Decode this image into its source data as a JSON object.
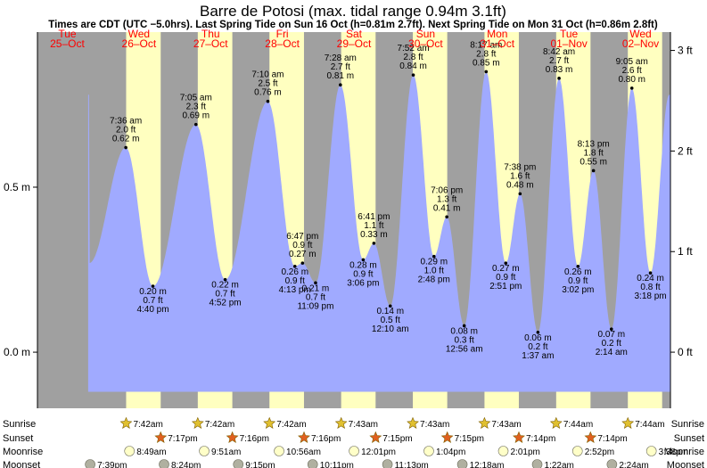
{
  "page": {
    "title": "Barre de Potosi (max. tidal range 0.94m 3.1ft)",
    "subtitle": "Times are CDT (UTC −5.0hrs). Last Spring Tide on Sun 16 Oct (h=0.81m 2.7ft). Next Spring Tide on Mon 31 Oct (h=0.86m 2.8ft)"
  },
  "colors": {
    "night": "#a0a0a0",
    "day": "#ffffc0",
    "tide": "#a0aaff",
    "label": "#000000",
    "day_label": "#ff0000",
    "sun_star": "#e0c030",
    "sunset_star": "#e06020",
    "moon_disc": "#ffffc8",
    "moonset_disc": "#b0b0a0"
  },
  "chart_data": {
    "type": "area",
    "x_unit": "hours since Tue 25-Oct 00:00 CDT",
    "y_unit": "m",
    "xlim": [
      2,
      214
    ],
    "ylim": [
      -0.17,
      0.97
    ],
    "left_axis": {
      "ticks": [
        0.0,
        0.5
      ],
      "labels": [
        "0.0 m",
        "0.5 m"
      ]
    },
    "right_axis": {
      "ticks": [
        0.0,
        0.3048,
        0.6096,
        0.9144
      ],
      "labels": [
        "0 ft",
        "1 ft",
        "2 ft",
        "3 ft"
      ]
    },
    "days": [
      {
        "dow": "Tue",
        "date": "25–Oct"
      },
      {
        "dow": "Wed",
        "date": "26–Oct"
      },
      {
        "dow": "Thu",
        "date": "27–Oct"
      },
      {
        "dow": "Fri",
        "date": "28–Oct"
      },
      {
        "dow": "Sat",
        "date": "29–Oct"
      },
      {
        "dow": "Sun",
        "date": "30–Oct"
      },
      {
        "dow": "Mon",
        "date": "31–Oct"
      },
      {
        "dow": "Tue",
        "date": "01–Nov"
      },
      {
        "dow": "Wed",
        "date": "02–Nov"
      }
    ],
    "extremes": [
      {
        "t": 31.6,
        "m": 0.62,
        "time": "7:36 am",
        "height_m": "0.62 m",
        "height_ft": "2.0 ft",
        "type": "high"
      },
      {
        "t": 40.67,
        "m": 0.2,
        "time": "4:40 pm",
        "height_m": "0.20 m",
        "height_ft": "0.7 ft",
        "type": "low"
      },
      {
        "t": 55.08,
        "m": 0.69,
        "time": "7:05 am",
        "height_m": "0.69 m",
        "height_ft": "2.3 ft",
        "type": "high"
      },
      {
        "t": 64.87,
        "m": 0.22,
        "time": "4:52 pm",
        "height_m": "0.22 m",
        "height_ft": "0.7 ft",
        "type": "low"
      },
      {
        "t": 79.17,
        "m": 0.76,
        "time": "7:10 am",
        "height_m": "0.76 m",
        "height_ft": "2.5 ft",
        "type": "high"
      },
      {
        "t": 88.22,
        "m": 0.26,
        "time": "4:13 pm",
        "height_m": "0.26 m",
        "height_ft": "0.9 ft",
        "type": "low"
      },
      {
        "t": 90.78,
        "m": 0.27,
        "time": "6:47 pm",
        "height_m": "0.27 m",
        "height_ft": "0.9 ft",
        "type": "high"
      },
      {
        "t": 95.15,
        "m": 0.21,
        "time": "11:09 pm",
        "height_m": "0.21 m",
        "height_ft": "0.7 ft",
        "type": "low"
      },
      {
        "t": 103.47,
        "m": 0.81,
        "time": "7:28 am",
        "height_m": "0.81 m",
        "height_ft": "2.7 ft",
        "type": "high"
      },
      {
        "t": 111.1,
        "m": 0.28,
        "time": "3:06 pm",
        "height_m": "0.28 m",
        "height_ft": "0.9 ft",
        "type": "low"
      },
      {
        "t": 114.68,
        "m": 0.33,
        "time": "6:41 pm",
        "height_m": "0.33 m",
        "height_ft": "1.1 ft",
        "type": "high"
      },
      {
        "t": 120.17,
        "m": 0.14,
        "time": "12:10 am",
        "height_m": "0.14 m",
        "height_ft": "0.5 ft",
        "type": "low"
      },
      {
        "t": 127.87,
        "m": 0.84,
        "time": "7:52 am",
        "height_m": "0.84 m",
        "height_ft": "2.8 ft",
        "type": "high"
      },
      {
        "t": 134.8,
        "m": 0.29,
        "time": "2:48 pm",
        "height_m": "0.29 m",
        "height_ft": "1.0 ft",
        "type": "low"
      },
      {
        "t": 139.1,
        "m": 0.41,
        "time": "7:06 pm",
        "height_m": "0.41 m",
        "height_ft": "1.3 ft",
        "type": "high"
      },
      {
        "t": 144.93,
        "m": 0.08,
        "time": "12:56 am",
        "height_m": "0.08 m",
        "height_ft": "0.3 ft",
        "type": "low"
      },
      {
        "t": 152.28,
        "m": 0.85,
        "time": "8:17 am",
        "height_m": "0.85 m",
        "height_ft": "2.8 ft",
        "type": "high"
      },
      {
        "t": 158.85,
        "m": 0.27,
        "time": "2:51 pm",
        "height_m": "0.27 m",
        "height_ft": "0.9 ft",
        "type": "low"
      },
      {
        "t": 163.63,
        "m": 0.48,
        "time": "7:38 pm",
        "height_m": "0.48 m",
        "height_ft": "1.6 ft",
        "type": "high"
      },
      {
        "t": 169.62,
        "m": 0.06,
        "time": "1:37 am",
        "height_m": "0.06 m",
        "height_ft": "0.2 ft",
        "type": "low"
      },
      {
        "t": 176.7,
        "m": 0.83,
        "time": "8:42 am",
        "height_m": "0.83 m",
        "height_ft": "2.7 ft",
        "type": "high"
      },
      {
        "t": 183.03,
        "m": 0.26,
        "time": "3:02 pm",
        "height_m": "0.26 m",
        "height_ft": "0.9 ft",
        "type": "low"
      },
      {
        "t": 188.22,
        "m": 0.55,
        "time": "8:13 pm",
        "height_m": "0.55 m",
        "height_ft": "1.8 ft",
        "type": "high"
      },
      {
        "t": 194.23,
        "m": 0.07,
        "time": "2:14 am",
        "height_m": "0.07 m",
        "height_ft": "0.2 ft",
        "type": "low"
      },
      {
        "t": 201.08,
        "m": 0.8,
        "time": "9:05 am",
        "height_m": "0.80 m",
        "height_ft": "2.6 ft",
        "type": "high"
      },
      {
        "t": 207.3,
        "m": 0.24,
        "time": "3:18 pm",
        "height_m": "0.24 m",
        "height_ft": "0.8 ft",
        "type": "low"
      }
    ],
    "daylight": [
      {
        "rise": 31.7,
        "set": 43.28
      },
      {
        "rise": 55.7,
        "set": 67.27
      },
      {
        "rise": 79.7,
        "set": 91.27
      },
      {
        "rise": 103.72,
        "set": 115.25
      },
      {
        "rise": 127.72,
        "set": 139.25
      },
      {
        "rise": 151.72,
        "set": 163.23
      },
      {
        "rise": 175.73,
        "set": 187.23
      },
      {
        "rise": 199.73,
        "set": 211.22
      }
    ]
  },
  "rows": {
    "labels": [
      "Sunrise",
      "Sunset",
      "Moonrise",
      "Moonset"
    ],
    "sunrise": [
      {
        "t": 31.7,
        "label": "7:42am"
      },
      {
        "t": 55.7,
        "label": "7:42am"
      },
      {
        "t": 79.7,
        "label": "7:42am"
      },
      {
        "t": 103.72,
        "label": "7:43am"
      },
      {
        "t": 127.72,
        "label": "7:43am"
      },
      {
        "t": 151.72,
        "label": "7:43am"
      },
      {
        "t": 175.73,
        "label": "7:44am"
      },
      {
        "t": 199.73,
        "label": "7:44am"
      }
    ],
    "sunset": [
      {
        "t": 43.28,
        "label": "7:17pm"
      },
      {
        "t": 67.27,
        "label": "7:16pm"
      },
      {
        "t": 91.27,
        "label": "7:16pm"
      },
      {
        "t": 115.25,
        "label": "7:15pm"
      },
      {
        "t": 139.25,
        "label": "7:15pm"
      },
      {
        "t": 163.23,
        "label": "7:14pm"
      },
      {
        "t": 187.23,
        "label": "7:14pm"
      }
    ],
    "moonrise": [
      {
        "t": 32.82,
        "label": "8:49am"
      },
      {
        "t": 57.85,
        "label": "9:51am"
      },
      {
        "t": 82.93,
        "label": "10:56am"
      },
      {
        "t": 108.02,
        "label": "12:01pm"
      },
      {
        "t": 133.07,
        "label": "1:04pm"
      },
      {
        "t": 158.02,
        "label": "2:01pm"
      },
      {
        "t": 182.87,
        "label": "2:52pm"
      },
      {
        "t": 207.63,
        "label": "3:38pm"
      }
    ],
    "moonset": [
      {
        "t": 19.65,
        "label": "7:39pm"
      },
      {
        "t": 44.4,
        "label": "8:24pm"
      },
      {
        "t": 69.25,
        "label": "9:15pm"
      },
      {
        "t": 94.18,
        "label": "10:11pm"
      },
      {
        "t": 119.22,
        "label": "11:13pm"
      },
      {
        "t": 144.3,
        "label": "12:18am"
      },
      {
        "t": 169.37,
        "label": "1:22am"
      },
      {
        "t": 194.4,
        "label": "2:24am"
      }
    ]
  }
}
